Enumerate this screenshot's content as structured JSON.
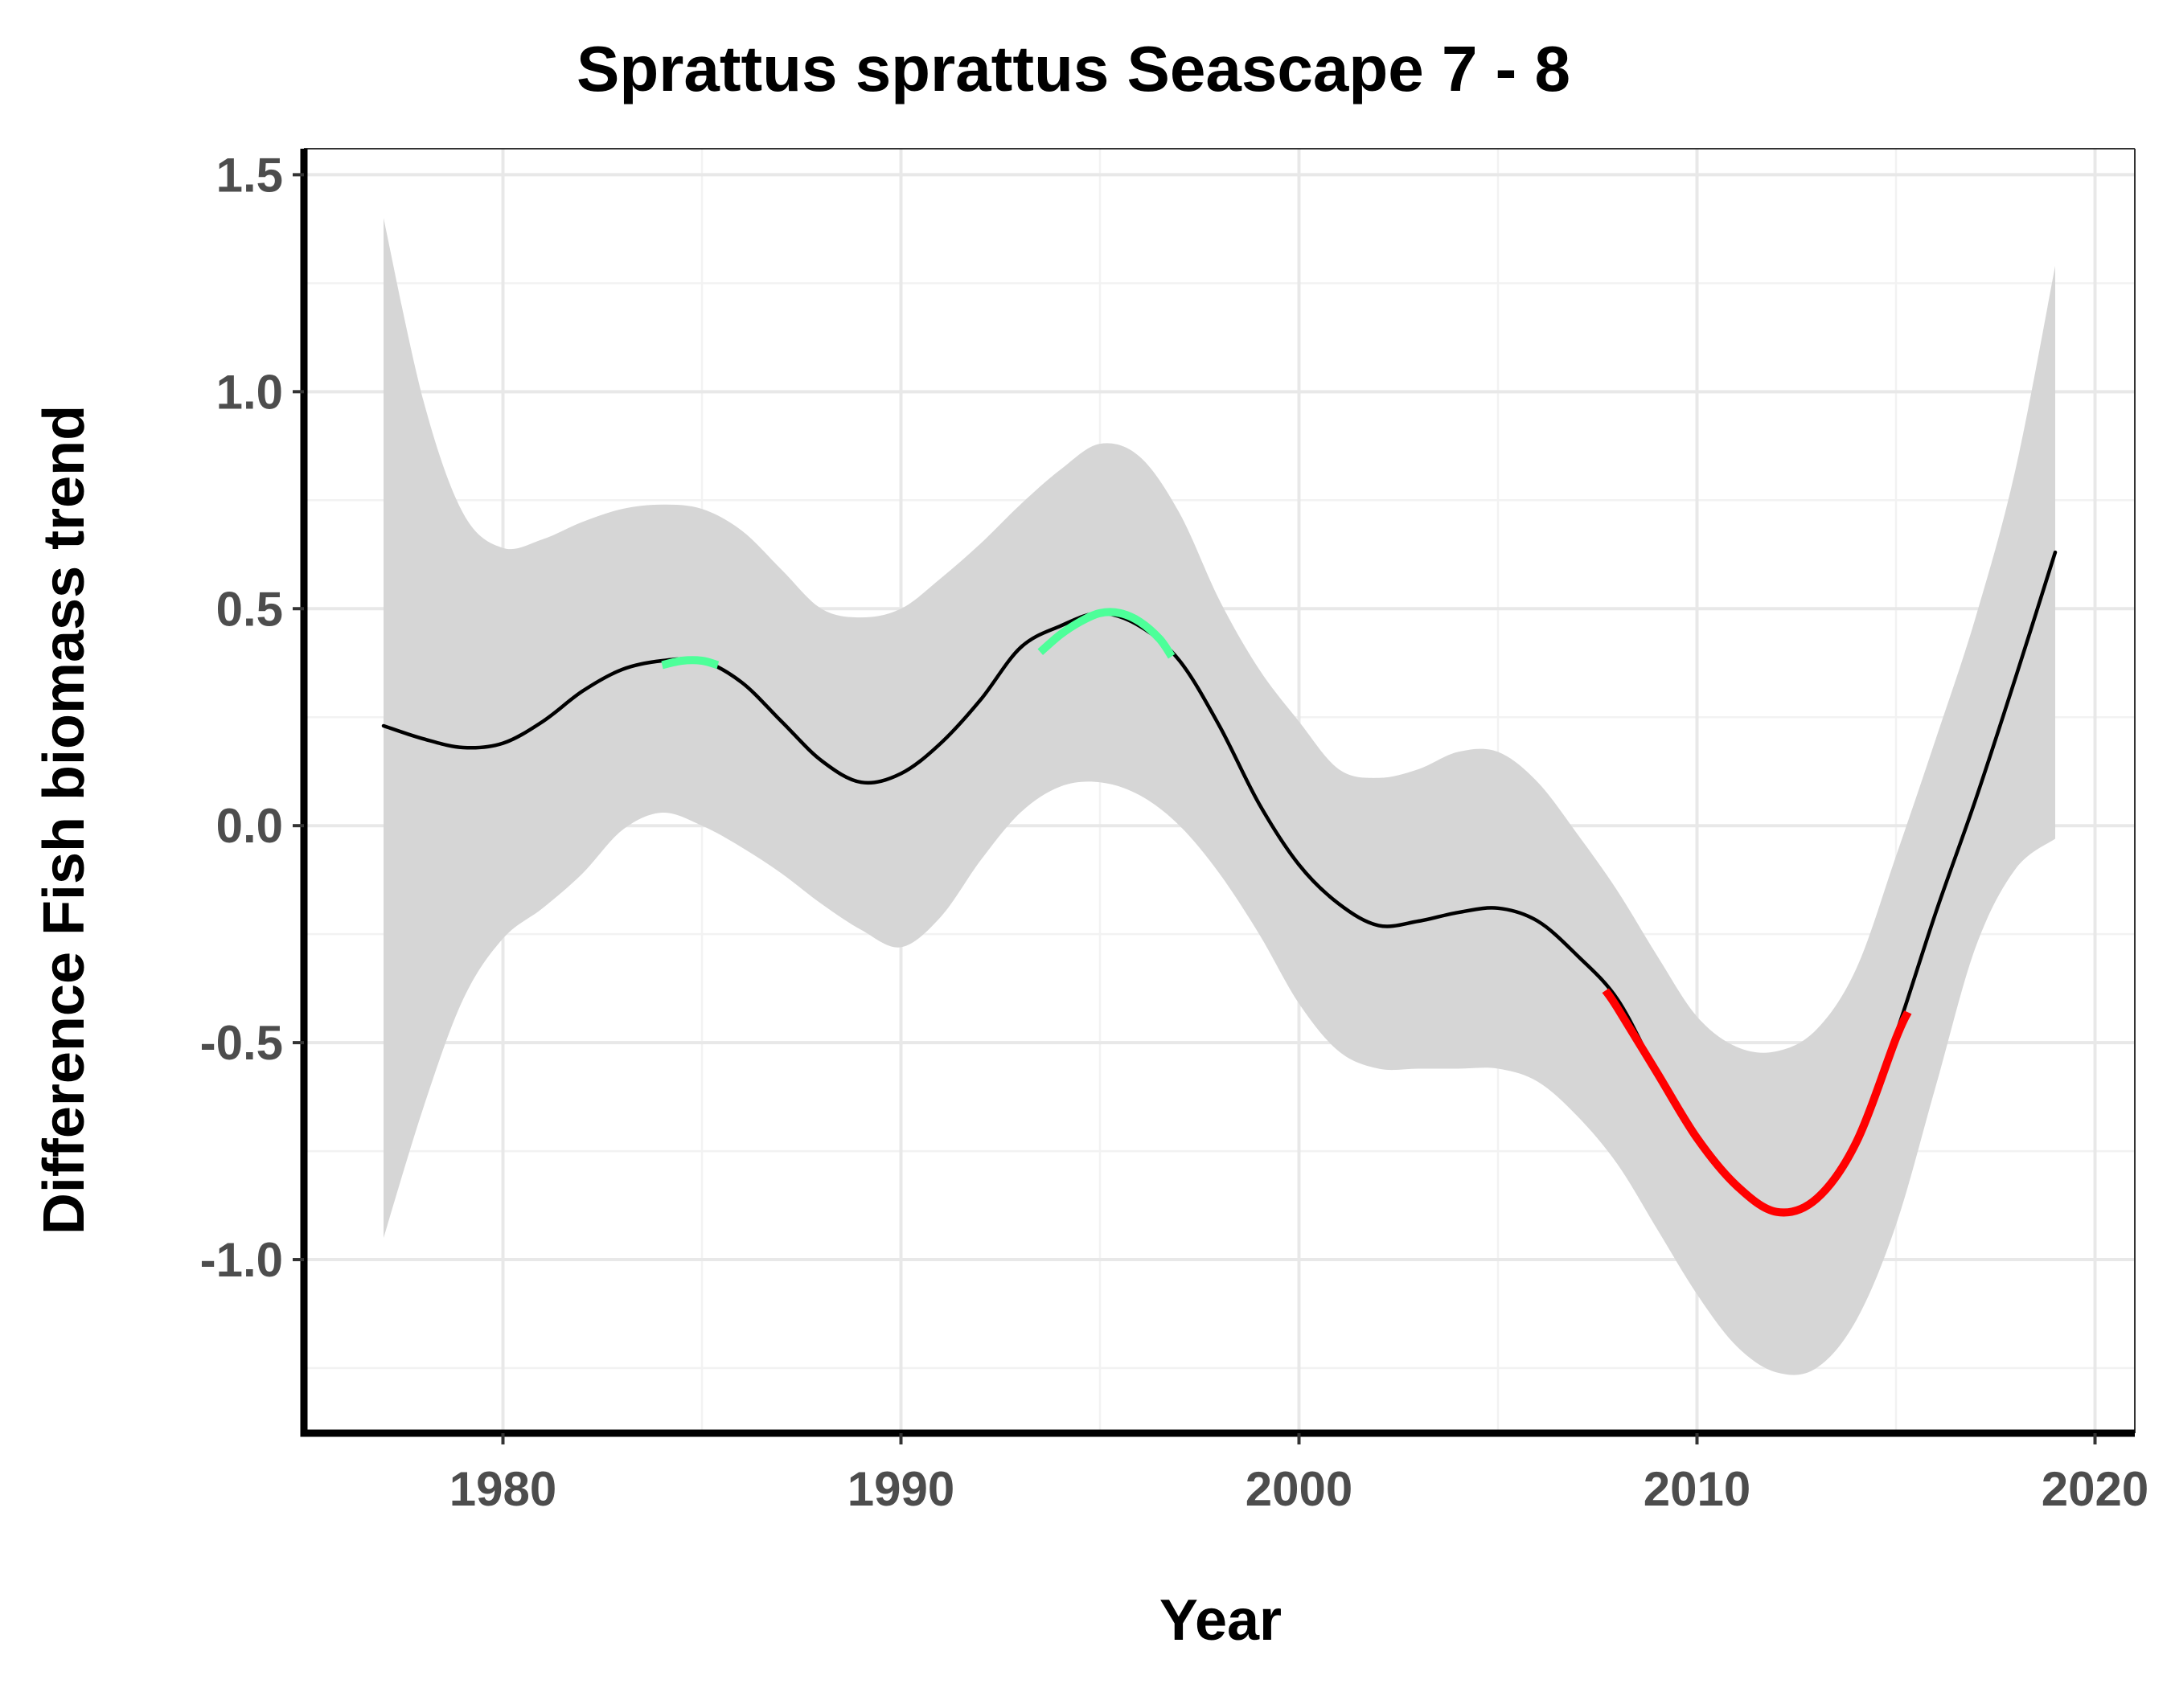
{
  "chart_data": {
    "type": "line",
    "title": "Sprattus sprattus Seascape 7 - 8",
    "xlabel": "Year",
    "ylabel": "Difference Fish biomass trend",
    "xlim": [
      1975,
      2021
    ],
    "ylim": [
      -1.4,
      1.56
    ],
    "x_ticks": [
      1980,
      1990,
      2000,
      2010,
      2020
    ],
    "x_tick_labels": [
      "1980",
      "1990",
      "2000",
      "2010",
      "2020"
    ],
    "y_ticks": [
      -1.0,
      -0.5,
      0.0,
      0.5,
      1.0,
      1.5
    ],
    "y_tick_labels": [
      "-1.0",
      "-0.5",
      "0.0",
      "0.5",
      "1.0",
      "1.5"
    ],
    "grid": true,
    "colors": {
      "trend": "#000000",
      "increase": "#4dff99",
      "decrease": "#ff0000",
      "ribbon": "#d6d6d6",
      "grid_major": "#e8e8e8",
      "grid_minor": "#f2f2f2",
      "tick_text": "#4d4d4d"
    },
    "series": [
      {
        "x": [
          1977,
          1978,
          1979,
          1980,
          1981,
          1982,
          1983,
          1984,
          1985,
          1986,
          1987,
          1988,
          1989,
          1990,
          1991,
          1992,
          1993,
          1994,
          1995,
          1996,
          1997,
          1998,
          1999,
          2000,
          2001,
          2002,
          2003,
          2004,
          2005,
          2006,
          2007,
          2008,
          2009,
          2010,
          2011,
          2012,
          2013,
          2014,
          2015,
          2016,
          2017,
          2018,
          2019
        ],
        "y": [
          0.23,
          0.2,
          0.18,
          0.19,
          0.24,
          0.31,
          0.36,
          0.38,
          0.38,
          0.33,
          0.24,
          0.15,
          0.1,
          0.12,
          0.19,
          0.29,
          0.41,
          0.46,
          0.49,
          0.46,
          0.38,
          0.23,
          0.05,
          -0.09,
          -0.18,
          -0.23,
          -0.22,
          -0.2,
          -0.19,
          -0.22,
          -0.3,
          -0.4,
          -0.57,
          -0.72,
          -0.83,
          -0.89,
          -0.86,
          -0.73,
          -0.48,
          -0.2,
          0.06,
          0.34,
          0.63
        ],
        "lower": [
          -0.95,
          -0.65,
          -0.4,
          -0.26,
          -0.19,
          -0.11,
          -0.01,
          0.03,
          0.0,
          -0.05,
          -0.11,
          -0.18,
          -0.24,
          -0.28,
          -0.21,
          -0.08,
          0.03,
          0.09,
          0.1,
          0.07,
          0.0,
          -0.11,
          -0.25,
          -0.41,
          -0.52,
          -0.56,
          -0.56,
          -0.56,
          -0.56,
          -0.59,
          -0.67,
          -0.78,
          -0.93,
          -1.08,
          -1.2,
          -1.26,
          -1.25,
          -1.14,
          -0.92,
          -0.6,
          -0.28,
          -0.1,
          -0.03
        ],
        "upper": [
          1.4,
          0.98,
          0.72,
          0.64,
          0.66,
          0.7,
          0.73,
          0.74,
          0.73,
          0.68,
          0.59,
          0.5,
          0.48,
          0.5,
          0.57,
          0.65,
          0.74,
          0.82,
          0.88,
          0.85,
          0.72,
          0.52,
          0.36,
          0.24,
          0.13,
          0.11,
          0.13,
          0.17,
          0.17,
          0.1,
          -0.02,
          -0.15,
          -0.3,
          -0.44,
          -0.51,
          -0.52,
          -0.47,
          -0.33,
          -0.07,
          0.2,
          0.48,
          0.82,
          1.29
        ]
      }
    ],
    "highlight_segments": [
      {
        "trend": "increase",
        "x": [
          1984.0,
          1984.5,
          1985.0,
          1985.4
        ],
        "y": [
          0.37,
          0.38,
          0.38,
          0.37
        ]
      },
      {
        "trend": "increase",
        "x": [
          1993.5,
          1994.0,
          1994.5,
          1995.0,
          1995.5,
          1996.0,
          1996.5,
          1996.8
        ],
        "y": [
          0.4,
          0.44,
          0.47,
          0.49,
          0.49,
          0.47,
          0.43,
          0.39
        ]
      },
      {
        "trend": "decrease",
        "x": [
          2007.7,
          2008.0,
          2009.0,
          2010.0,
          2011.0,
          2012.0,
          2013.0,
          2014.0,
          2015.0,
          2015.3
        ],
        "y": [
          -0.38,
          -0.42,
          -0.57,
          -0.72,
          -0.83,
          -0.89,
          -0.86,
          -0.73,
          -0.49,
          -0.43
        ]
      }
    ]
  }
}
